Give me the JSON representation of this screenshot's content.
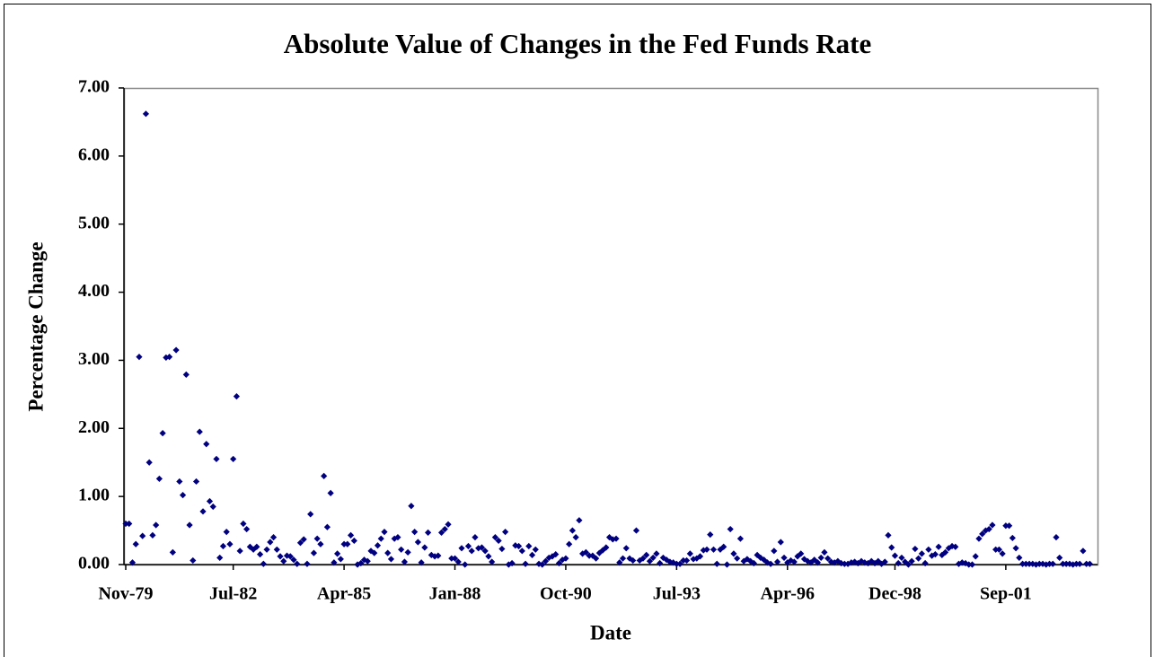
{
  "chart_data": {
    "type": "scatter",
    "title": "Absolute Value of Changes in the Fed Funds Rate",
    "x_label": "Date",
    "y_label": "Percentage Change",
    "marker_color": "#000080",
    "ylim": [
      0,
      7
    ],
    "yticks": [
      {
        "value": 0,
        "label": "0.00"
      },
      {
        "value": 1,
        "label": "1.00"
      },
      {
        "value": 2,
        "label": "2.00"
      },
      {
        "value": 3,
        "label": "3.00"
      },
      {
        "value": 4,
        "label": "4.00"
      },
      {
        "value": 5,
        "label": "5.00"
      },
      {
        "value": 6,
        "label": "6.00"
      },
      {
        "value": 7,
        "label": "7.00"
      }
    ],
    "categories": [
      "Nov-79",
      null,
      null,
      null,
      null,
      null,
      null,
      null,
      null,
      null,
      null,
      null,
      null,
      null,
      null,
      null,
      null,
      null,
      null,
      null,
      null,
      null,
      null,
      null,
      null,
      null,
      null,
      null,
      null,
      null,
      null,
      null,
      "Jul-82",
      null,
      null,
      null,
      null,
      null,
      null,
      null,
      null,
      null,
      null,
      null,
      null,
      null,
      null,
      null,
      null,
      null,
      null,
      null,
      null,
      null,
      null,
      null,
      null,
      null,
      null,
      null,
      null,
      null,
      null,
      null,
      null,
      "Apr-85",
      null,
      null,
      null,
      null,
      null,
      null,
      null,
      null,
      null,
      null,
      null,
      null,
      null,
      null,
      null,
      null,
      null,
      null,
      null,
      null,
      null,
      null,
      null,
      null,
      null,
      null,
      null,
      null,
      null,
      null,
      null,
      null,
      "Jan-88",
      null,
      null,
      null,
      null,
      null,
      null,
      null,
      null,
      null,
      null,
      null,
      null,
      null,
      null,
      null,
      null,
      null,
      null,
      null,
      null,
      null,
      null,
      null,
      null,
      null,
      null,
      null,
      null,
      null,
      null,
      null,
      null,
      "Oct-90",
      null,
      null,
      null,
      null,
      null,
      null,
      null,
      null,
      null,
      null,
      null,
      null,
      null,
      null,
      null,
      null,
      null,
      null,
      null,
      null,
      null,
      null,
      null,
      null,
      null,
      null,
      null,
      null,
      null,
      null,
      null,
      null,
      "Jul-93",
      null,
      null,
      null,
      null,
      null,
      null,
      null,
      null,
      null,
      null,
      null,
      null,
      null,
      null,
      null,
      null,
      null,
      null,
      null,
      null,
      null,
      null,
      null,
      null,
      null,
      null,
      null,
      null,
      null,
      null,
      null,
      null,
      "Apr-96",
      null,
      null,
      null,
      null,
      null,
      null,
      null,
      null,
      null,
      null,
      null,
      null,
      null,
      null,
      null,
      null,
      null,
      null,
      null,
      null,
      null,
      null,
      null,
      null,
      null,
      null,
      null,
      null,
      null,
      null,
      null,
      "Dec-98",
      null,
      null,
      null,
      null,
      null,
      null,
      null,
      null,
      null,
      null,
      null,
      null,
      null,
      null,
      null,
      null,
      null,
      null,
      null,
      null,
      null,
      null,
      null,
      null,
      null,
      null,
      null,
      null,
      null,
      null,
      null,
      null,
      "Sep-01",
      null,
      null,
      null,
      null,
      null,
      null,
      null,
      null,
      null,
      null,
      null,
      null,
      null,
      null,
      null,
      null,
      null,
      null,
      null,
      null,
      null,
      null,
      null,
      null,
      null
    ],
    "values": [
      0.6,
      0.6,
      0.03,
      0.3,
      3.05,
      0.42,
      6.62,
      1.5,
      0.43,
      0.58,
      1.26,
      1.93,
      3.04,
      3.05,
      0.18,
      3.15,
      1.22,
      1.02,
      2.79,
      0.58,
      0.06,
      1.22,
      1.95,
      0.78,
      1.77,
      0.93,
      0.85,
      1.55,
      0.1,
      0.27,
      0.48,
      0.3,
      1.55,
      2.47,
      0.2,
      0.6,
      0.52,
      0.26,
      0.22,
      0.26,
      0.15,
      0.01,
      0.22,
      0.33,
      0.4,
      0.22,
      0.12,
      0.05,
      0.13,
      0.12,
      0.07,
      0.01,
      0.32,
      0.37,
      0.01,
      0.74,
      0.17,
      0.38,
      0.3,
      1.3,
      0.55,
      1.05,
      0.03,
      0.16,
      0.08,
      0.3,
      0.3,
      0.43,
      0.35,
      0.0,
      0.02,
      0.07,
      0.05,
      0.2,
      0.17,
      0.28,
      0.38,
      0.48,
      0.17,
      0.08,
      0.38,
      0.4,
      0.22,
      0.04,
      0.18,
      0.86,
      0.48,
      0.33,
      0.03,
      0.25,
      0.47,
      0.14,
      0.12,
      0.13,
      0.47,
      0.52,
      0.59,
      0.09,
      0.09,
      0.04,
      0.24,
      0.0,
      0.27,
      0.2,
      0.4,
      0.24,
      0.25,
      0.2,
      0.12,
      0.04,
      0.4,
      0.35,
      0.23,
      0.48,
      0.0,
      0.02,
      0.28,
      0.27,
      0.2,
      0.01,
      0.27,
      0.14,
      0.22,
      0.01,
      0.0,
      0.05,
      0.1,
      0.12,
      0.15,
      0.02,
      0.07,
      0.09,
      0.3,
      0.5,
      0.4,
      0.65,
      0.16,
      0.18,
      0.13,
      0.13,
      0.09,
      0.17,
      0.21,
      0.25,
      0.4,
      0.37,
      0.38,
      0.03,
      0.09,
      0.24,
      0.09,
      0.06,
      0.5,
      0.06,
      0.09,
      0.14,
      0.05,
      0.1,
      0.16,
      0.02,
      0.1,
      0.07,
      0.04,
      0.03,
      0.01,
      0.01,
      0.06,
      0.06,
      0.16,
      0.08,
      0.09,
      0.12,
      0.21,
      0.22,
      0.44,
      0.22,
      0.01,
      0.22,
      0.26,
      0.0,
      0.52,
      0.16,
      0.09,
      0.38,
      0.05,
      0.08,
      0.05,
      0.02,
      0.14,
      0.1,
      0.07,
      0.03,
      0.01,
      0.2,
      0.04,
      0.33,
      0.1,
      0.03,
      0.06,
      0.04,
      0.12,
      0.16,
      0.08,
      0.05,
      0.03,
      0.07,
      0.03,
      0.1,
      0.18,
      0.09,
      0.04,
      0.03,
      0.05,
      0.02,
      0.01,
      0.01,
      0.03,
      0.04,
      0.02,
      0.05,
      0.03,
      0.02,
      0.05,
      0.02,
      0.05,
      0.01,
      0.04,
      0.43,
      0.25,
      0.13,
      0.02,
      0.1,
      0.04,
      0.0,
      0.05,
      0.23,
      0.09,
      0.16,
      0.02,
      0.22,
      0.13,
      0.15,
      0.26,
      0.14,
      0.18,
      0.24,
      0.27,
      0.26,
      0.01,
      0.03,
      0.02,
      0.0,
      0.0,
      0.12,
      0.38,
      0.45,
      0.5,
      0.52,
      0.58,
      0.22,
      0.22,
      0.16,
      0.57,
      0.57,
      0.39,
      0.24,
      0.1,
      0.01,
      0.01,
      0.01,
      0.01,
      0.0,
      0.01,
      0.01,
      0.0,
      0.01,
      0.01,
      0.4,
      0.1,
      0.01,
      0.01,
      0.01,
      0.0,
      0.01,
      0.01,
      0.2,
      0.01,
      0.01
    ]
  }
}
